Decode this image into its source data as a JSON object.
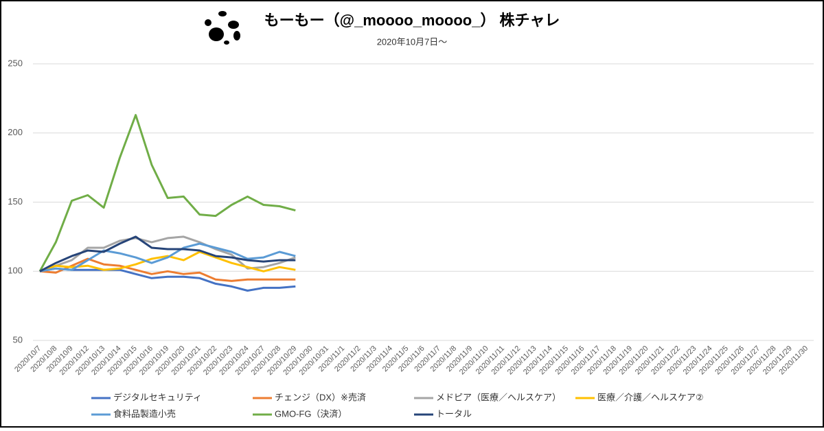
{
  "chart_data": {
    "type": "line",
    "title": "もーもー（@_moooo_moooo_） 株チャレ",
    "subtitle": "2020年10月7日～",
    "categories": [
      "2020/10/7",
      "2020/10/8",
      "2020/10/9",
      "2020/10/12",
      "2020/10/13",
      "2020/10/14",
      "2020/10/15",
      "2020/10/16",
      "2020/10/19",
      "2020/10/20",
      "2020/10/21",
      "2020/10/22",
      "2020/10/23",
      "2020/10/24",
      "2020/10/27",
      "2020/10/28",
      "2020/10/29",
      "2020/10/30",
      "2020/10/31",
      "2020/11/1",
      "2020/11/2",
      "2020/11/3",
      "2020/11/4",
      "2020/11/5",
      "2020/11/6",
      "2020/11/7",
      "2020/11/8",
      "2020/11/9",
      "2020/11/10",
      "2020/11/11",
      "2020/11/12",
      "2020/11/13",
      "2020/11/14",
      "2020/11/15",
      "2020/11/16",
      "2020/11/17",
      "2020/11/18",
      "2020/11/19",
      "2020/11/20",
      "2020/11/21",
      "2020/11/22",
      "2020/11/23",
      "2020/11/24",
      "2020/11/25",
      "2020/11/26",
      "2020/11/27",
      "2020/11/28",
      "2020/11/29",
      "2020/11/30"
    ],
    "series": [
      {
        "name": "デジタルセキュリティ",
        "color": "#4472c4",
        "values": [
          100,
          102,
          101,
          101,
          101,
          101,
          98,
          95,
          96,
          96,
          95,
          91,
          89,
          86,
          88,
          88,
          89,
          null,
          null,
          null,
          null,
          null,
          null,
          null,
          null,
          null,
          null,
          null,
          null,
          null,
          null,
          null,
          null,
          null,
          null,
          null,
          null,
          null,
          null,
          null,
          null,
          null,
          null,
          null,
          null,
          null,
          null,
          null,
          null
        ]
      },
      {
        "name": "チェンジ（DX）※売済",
        "color": "#ed7d31",
        "values": [
          100,
          99,
          104,
          109,
          105,
          104,
          101,
          98,
          100,
          98,
          99,
          94,
          93,
          94,
          94,
          94,
          94,
          null,
          null,
          null,
          null,
          null,
          null,
          null,
          null,
          null,
          null,
          null,
          null,
          null,
          null,
          null,
          null,
          null,
          null,
          null,
          null,
          null,
          null,
          null,
          null,
          null,
          null,
          null,
          null,
          null,
          null,
          null,
          null
        ]
      },
      {
        "name": "メドピア（医療／ヘルスケア）",
        "color": "#a5a5a5",
        "values": [
          100,
          104,
          108,
          117,
          117,
          122,
          124,
          121,
          124,
          125,
          121,
          116,
          112,
          102,
          103,
          106,
          110,
          null,
          null,
          null,
          null,
          null,
          null,
          null,
          null,
          null,
          null,
          null,
          null,
          null,
          null,
          null,
          null,
          null,
          null,
          null,
          null,
          null,
          null,
          null,
          null,
          null,
          null,
          null,
          null,
          null,
          null,
          null,
          null
        ]
      },
      {
        "name": "医療／介護／ヘルスケア②",
        "color": "#ffc000",
        "values": [
          100,
          104,
          103,
          104,
          101,
          102,
          105,
          109,
          111,
          108,
          114,
          110,
          106,
          103,
          100,
          103,
          101,
          null,
          null,
          null,
          null,
          null,
          null,
          null,
          null,
          null,
          null,
          null,
          null,
          null,
          null,
          null,
          null,
          null,
          null,
          null,
          null,
          null,
          null,
          null,
          null,
          null,
          null,
          null,
          null,
          null,
          null,
          null,
          null
        ]
      },
      {
        "name": "食料品製造小売",
        "color": "#5b9bd5",
        "values": [
          100,
          102,
          101,
          108,
          115,
          113,
          110,
          106,
          110,
          117,
          120,
          117,
          114,
          109,
          110,
          114,
          111,
          null,
          null,
          null,
          null,
          null,
          null,
          null,
          null,
          null,
          null,
          null,
          null,
          null,
          null,
          null,
          null,
          null,
          null,
          null,
          null,
          null,
          null,
          null,
          null,
          null,
          null,
          null,
          null,
          null,
          null,
          null,
          null
        ]
      },
      {
        "name": "GMO-FG（決済）",
        "color": "#70ad47",
        "values": [
          100,
          121,
          151,
          155,
          146,
          182,
          213,
          177,
          153,
          154,
          141,
          140,
          148,
          154,
          148,
          147,
          144,
          null,
          null,
          null,
          null,
          null,
          null,
          null,
          null,
          null,
          null,
          null,
          null,
          null,
          null,
          null,
          null,
          null,
          null,
          null,
          null,
          null,
          null,
          null,
          null,
          null,
          null,
          null,
          null,
          null,
          null,
          null,
          null
        ]
      },
      {
        "name": "トータル",
        "color": "#264478",
        "values": [
          100,
          106,
          111,
          115,
          114,
          120,
          125,
          117,
          116,
          116,
          115,
          111,
          110,
          108,
          107,
          108,
          108,
          null,
          null,
          null,
          null,
          null,
          null,
          null,
          null,
          null,
          null,
          null,
          null,
          null,
          null,
          null,
          null,
          null,
          null,
          null,
          null,
          null,
          null,
          null,
          null,
          null,
          null,
          null,
          null,
          null,
          null,
          null,
          null
        ]
      }
    ],
    "ylim": [
      50,
      250
    ],
    "yticks": [
      50,
      100,
      150,
      200,
      250
    ],
    "grid": true
  }
}
